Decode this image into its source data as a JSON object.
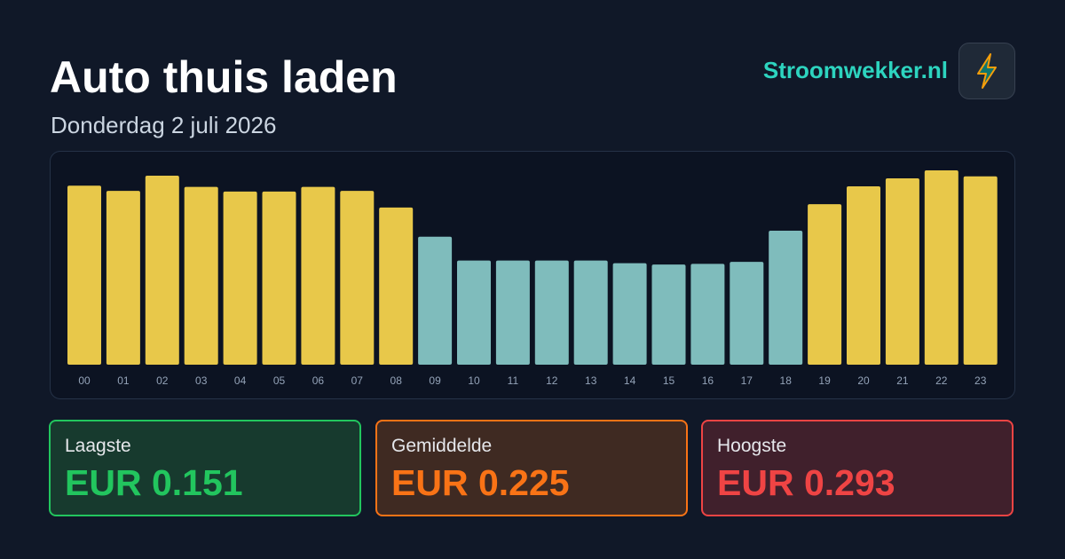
{
  "header": {
    "title": "Auto thuis laden",
    "subtitle": "Donderdag 2 juli 2026",
    "brand": "Stroomwekker.nl"
  },
  "chart_data": {
    "type": "bar",
    "categories": [
      "00",
      "01",
      "02",
      "03",
      "04",
      "05",
      "06",
      "07",
      "08",
      "09",
      "10",
      "11",
      "12",
      "13",
      "14",
      "15",
      "16",
      "17",
      "18",
      "19",
      "20",
      "21",
      "22",
      "23"
    ],
    "values": [
      0.27,
      0.262,
      0.285,
      0.268,
      0.261,
      0.261,
      0.268,
      0.262,
      0.237,
      0.193,
      0.157,
      0.157,
      0.157,
      0.157,
      0.153,
      0.151,
      0.152,
      0.155,
      0.202,
      0.242,
      0.269,
      0.281,
      0.293,
      0.284
    ],
    "colors": [
      "#e8c84a",
      "#e8c84a",
      "#e8c84a",
      "#e8c84a",
      "#e8c84a",
      "#e8c84a",
      "#e8c84a",
      "#e8c84a",
      "#e8c84a",
      "#7fbcbc",
      "#7fbcbc",
      "#7fbcbc",
      "#7fbcbc",
      "#7fbcbc",
      "#7fbcbc",
      "#7fbcbc",
      "#7fbcbc",
      "#7fbcbc",
      "#7fbcbc",
      "#e8c84a",
      "#e8c84a",
      "#e8c84a",
      "#e8c84a",
      "#e8c84a"
    ]
  },
  "stats": [
    {
      "label": "Laagste",
      "value": "EUR 0.151"
    },
    {
      "label": "Gemiddelde",
      "value": "EUR 0.225"
    },
    {
      "label": "Hoogste",
      "value": "EUR 0.293"
    }
  ]
}
